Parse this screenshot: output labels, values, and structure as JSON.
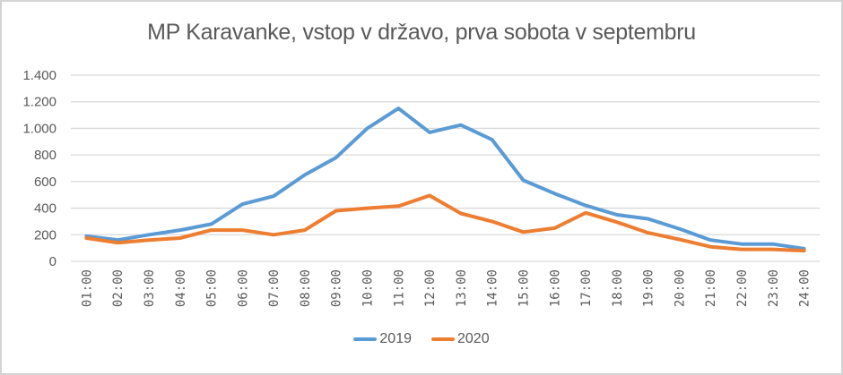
{
  "chart_data": {
    "type": "line",
    "title": "MP Karavanke, vstop v državo, prva sobota v septembru",
    "xlabel": "",
    "ylabel": "",
    "ylim": [
      0,
      1400
    ],
    "yticks": [
      "0",
      "200",
      "400",
      "600",
      "800",
      "1.000",
      "1.200",
      "1.400"
    ],
    "ytick_values": [
      0,
      200,
      400,
      600,
      800,
      1000,
      1200,
      1400
    ],
    "grid": true,
    "legend_position": "bottom",
    "categories": [
      "01:00",
      "02:00",
      "03:00",
      "04:00",
      "05:00",
      "06:00",
      "07:00",
      "08:00",
      "09:00",
      "10:00",
      "11:00",
      "12:00",
      "13:00",
      "14:00",
      "15:00",
      "16:00",
      "17:00",
      "18:00",
      "19:00",
      "20:00",
      "21:00",
      "22:00",
      "23:00",
      "24:00"
    ],
    "series": [
      {
        "name": "2019",
        "color": "#5b9bd5",
        "values": [
          190,
          160,
          200,
          235,
          280,
          430,
          490,
          650,
          780,
          1000,
          1150,
          970,
          1025,
          915,
          610,
          510,
          420,
          350,
          320,
          245,
          160,
          130,
          130,
          95
        ]
      },
      {
        "name": "2020",
        "color": "#ed7d31",
        "values": [
          175,
          140,
          160,
          175,
          235,
          235,
          200,
          235,
          380,
          400,
          415,
          495,
          360,
          300,
          220,
          250,
          365,
          295,
          215,
          165,
          110,
          90,
          90,
          80
        ]
      }
    ]
  },
  "colors": {
    "grid": "#d9d9d9",
    "text": "#595959",
    "border": "#d4d4d4"
  }
}
